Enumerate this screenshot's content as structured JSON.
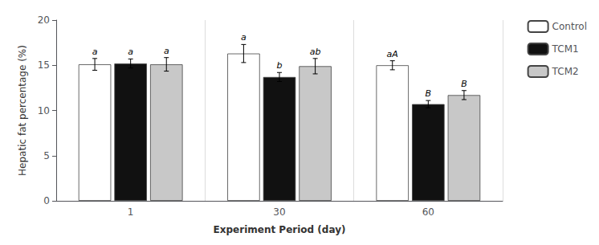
{
  "chart_data": {
    "type": "bar",
    "categories": [
      "1",
      "30",
      "60"
    ],
    "series": [
      {
        "name": "Control",
        "color": "white",
        "values": [
          15.1,
          16.3,
          15.0
        ],
        "errors": [
          0.65,
          1.0,
          0.5
        ],
        "annotations": [
          "a",
          "a",
          "aA"
        ]
      },
      {
        "name": "TCM1",
        "color": "#111111",
        "values": [
          15.2,
          13.7,
          10.7
        ],
        "errors": [
          0.5,
          0.5,
          0.4
        ],
        "annotations": [
          "a",
          "b",
          "B"
        ]
      },
      {
        "name": "TCM2",
        "color": "#c8c8c8",
        "values": [
          15.1,
          14.9,
          11.7
        ],
        "errors": [
          0.75,
          0.85,
          0.5
        ],
        "annotations": [
          "a",
          "ab",
          "B"
        ]
      }
    ],
    "xlabel": "Experiment Period (day)",
    "ylabel": "Hepatic fat percentage (%)",
    "ylim": [
      0,
      20
    ],
    "yticks": [
      0,
      5,
      10,
      15,
      20
    ],
    "grid": false,
    "legend": "upper right"
  }
}
